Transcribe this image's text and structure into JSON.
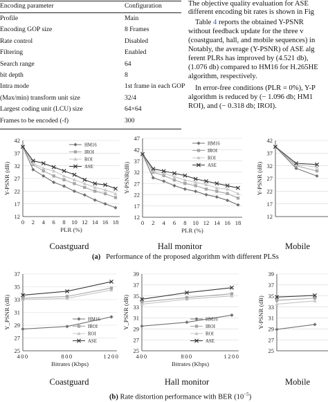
{
  "table": {
    "headers": [
      "Encoding parameter",
      "Configuration"
    ],
    "rows": [
      [
        "Profile",
        "Main"
      ],
      [
        "Encoding GOP size",
        "8 Frames"
      ],
      [
        "Rate control",
        "Disabled"
      ],
      [
        "Filtering",
        "Enabled"
      ],
      [
        "Search range",
        "64"
      ],
      [
        "bit depth",
        "8"
      ],
      [
        "Intra mode",
        "1st frame in each GOP"
      ],
      [
        "(Max/min) transform unit size",
        "32/4"
      ],
      [
        "Largest coding unit (LCU) size",
        "64×64"
      ],
      [
        "Frames to be encoded (-f)",
        "300"
      ]
    ]
  },
  "text": {
    "l1": "The objective quality evaluation for ASE",
    "l2": "different encoding bit rates is shown in Fig",
    "l3a": "Table ",
    "l3ref": "4",
    "l3b": " reports the obtained Y-PSNR",
    "l4": "without feedback update for the three v",
    "l5": "(coastguard, hall, and mobile sequences) in",
    "l6": "Notably, the average (Y-PSNR) of ASE alg",
    "l7": "ferent PLRs has improved by (4.521 db),",
    "l8": "(1.076 db) compared to HM16 for H.265HE",
    "l9": "algorithm, respectively.",
    "l10": "In error-free conditions (PLR = 0%), Y-P",
    "l11": "algorithm is reduced by (− 1.096 db; HM1",
    "l12": "ROI), and (− 0.318 db; IROI)."
  },
  "captions": {
    "a_label": "(a)",
    "a_text": "Performance of the proposed algorithm with different PLSs",
    "b_label": "(b)",
    "b_text": "Rate distortion performance with BER (10",
    "b_exp": "−5",
    "b_close": ")"
  },
  "legend_labels": [
    "HM16",
    "IROI",
    "ROI",
    "ASE"
  ],
  "colors": {
    "HM16": "#707070",
    "IROI": "#a6a6a6",
    "ROI": "#c4c4c4",
    "ASE": "#383838",
    "link": "#2a5db0"
  },
  "chart_data": [
    {
      "type": "line",
      "subtitle": "Coastguard",
      "xlabel": "PLR (%)",
      "ylabel": "Y-PSNR (dB)",
      "x": [
        0,
        2,
        4,
        6,
        8,
        10,
        12,
        14,
        16,
        18
      ],
      "xticks": [
        "0",
        "2",
        "4",
        "6",
        "8",
        "10",
        "12",
        "14",
        "16",
        "18"
      ],
      "yticks": [
        12,
        17,
        22,
        27,
        32,
        37,
        42
      ],
      "ylim": [
        12,
        42
      ],
      "series": [
        {
          "name": "HM16",
          "values": [
            39.5,
            30.5,
            28,
            25.5,
            24,
            22,
            20.5,
            18.5,
            17,
            15.5
          ]
        },
        {
          "name": "IROI",
          "values": [
            39.5,
            32.5,
            30,
            28,
            26.5,
            25,
            23.5,
            22,
            21,
            19.5
          ]
        },
        {
          "name": "ROI",
          "values": [
            39.5,
            33,
            31,
            30,
            28,
            26.5,
            25,
            23.5,
            22.5,
            21
          ]
        },
        {
          "name": "ASE",
          "values": [
            39.5,
            34,
            33,
            31.5,
            30,
            28.5,
            26.5,
            25,
            24.5,
            23
          ]
        }
      ]
    },
    {
      "type": "line",
      "subtitle": "Hall monitor",
      "xlabel": "PLR (%)",
      "ylabel": "Y-PSNR(dB)",
      "x": [
        0,
        2,
        4,
        6,
        8,
        10,
        12,
        14,
        16,
        18
      ],
      "xticks": [
        "0",
        "2",
        "4",
        "6",
        "8",
        "10",
        "12",
        "14",
        "16",
        "18"
      ],
      "yticks": [
        12,
        17,
        22,
        27,
        32,
        37,
        42,
        47
      ],
      "ylim": [
        12,
        47
      ],
      "series": [
        {
          "name": "HM16",
          "values": [
            40,
            29.5,
            28,
            26,
            24.5,
            23.5,
            22,
            21,
            19.5,
            17.5
          ]
        },
        {
          "name": "IROI",
          "values": [
            40,
            32,
            30.5,
            28.5,
            27,
            26,
            24.5,
            23.5,
            22.5,
            20.5
          ]
        },
        {
          "name": "ROI",
          "values": [
            40,
            32.5,
            31.5,
            30,
            28.5,
            27.5,
            26.5,
            25,
            24.5,
            22.5
          ]
        },
        {
          "name": "ASE",
          "values": [
            40,
            33.5,
            32.5,
            31.5,
            30.5,
            29,
            28,
            27,
            26,
            25
          ]
        }
      ]
    },
    {
      "type": "line",
      "subtitle": "Mobile",
      "xlabel": "",
      "ylabel": "Y-PSNR (dB)",
      "x": [
        0,
        2,
        4
      ],
      "xticks": [],
      "yticks": [
        12,
        17,
        22,
        27,
        32,
        37,
        42
      ],
      "ylim": [
        12,
        42
      ],
      "series": [
        {
          "name": "HM16",
          "values": [
            39.5,
            31,
            28
          ]
        },
        {
          "name": "IROI",
          "values": [
            39.5,
            32,
            30
          ]
        },
        {
          "name": "ROI",
          "values": [
            39.5,
            32.5,
            31.5
          ]
        },
        {
          "name": "ASE",
          "values": [
            39.5,
            33,
            32.5
          ]
        }
      ]
    },
    {
      "type": "line",
      "subtitle": "Coastguard",
      "xlabel": "Bitrates (Kbps)",
      "ylabel": "Y_PSNR (dB)",
      "x": [
        400,
        800,
        1200
      ],
      "xticks": [
        "400",
        "800",
        "1200"
      ],
      "yticks": [
        25,
        27,
        29,
        31,
        33,
        35,
        37
      ],
      "ylim": [
        25,
        37
      ],
      "series": [
        {
          "name": "HM16",
          "values": [
            28.4,
            28.8,
            30.3
          ]
        },
        {
          "name": "ROI",
          "values": [
            33.0,
            33.2,
            34.5
          ]
        },
        {
          "name": "IROI",
          "values": [
            33.2,
            33.5,
            34.8
          ]
        },
        {
          "name": "ASE",
          "values": [
            33.7,
            34.3,
            35.8
          ]
        }
      ]
    },
    {
      "type": "line",
      "subtitle": "Hall monitor",
      "xlabel": "Bitrates (Kbps)",
      "ylabel": "Y_PSNR (dB)",
      "x": [
        400,
        800,
        1200
      ],
      "xticks": [
        "400",
        "800",
        "1200"
      ],
      "yticks": [
        25,
        27,
        29,
        31,
        33,
        35,
        37,
        39
      ],
      "ylim": [
        25,
        39
      ],
      "series": [
        {
          "name": "HM16",
          "values": [
            29.5,
            30.2,
            31.5
          ]
        },
        {
          "name": "ROI",
          "values": [
            33.5,
            34.4,
            35.0
          ]
        },
        {
          "name": "IROI",
          "values": [
            33.9,
            34.7,
            35.4
          ]
        },
        {
          "name": "ASE",
          "values": [
            34.4,
            35.6,
            36.5
          ]
        }
      ]
    },
    {
      "type": "line",
      "subtitle": "Mobile",
      "xlabel": "",
      "ylabel": "Y-PSNR (dB)",
      "x": [
        400,
        800
      ],
      "xticks": [],
      "yticks": [
        25,
        27,
        29,
        31,
        33,
        35,
        37,
        39
      ],
      "ylim": [
        25,
        39
      ],
      "series": [
        {
          "name": "HM16",
          "values": [
            28.9,
            29.8
          ]
        },
        {
          "name": "ROI",
          "values": [
            33.5,
            34.1
          ]
        },
        {
          "name": "IROI",
          "values": [
            34.2,
            34.6
          ]
        },
        {
          "name": "ASE",
          "values": [
            34.8,
            35.1
          ]
        }
      ]
    }
  ]
}
